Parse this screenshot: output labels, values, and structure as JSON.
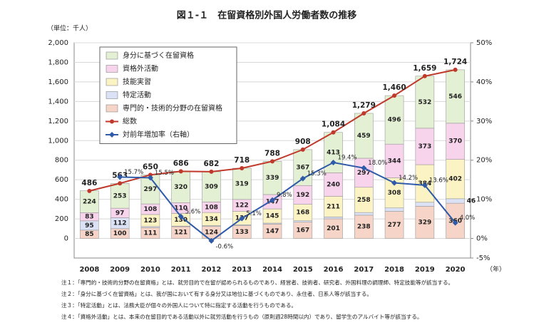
{
  "chart_data": {
    "type": "bar",
    "stacked": true,
    "title": "図１-１　在留資格別外国人労働者数の推移",
    "unit_label": "（単位：千人）",
    "x_unit_label": "（年）",
    "categories": [
      "2008",
      "2009",
      "2010",
      "2011",
      "2012",
      "2013",
      "2014",
      "2015",
      "2016",
      "2017",
      "2018",
      "2019",
      "2020"
    ],
    "series": [
      {
        "name": "専門的・技術的分野の在留資格",
        "color": "#f6d5c8",
        "values": [
          85,
          100,
          111,
          121,
          124,
          133,
          147,
          167,
          201,
          238,
          277,
          329,
          360
        ],
        "value_labels": [
          "85",
          "100",
          "111",
          "121",
          "124",
          "133",
          "147",
          "167",
          "201",
          "238",
          "277",
          "329",
          "360"
        ]
      },
      {
        "name": "特定活動",
        "color": "#dbe2f6",
        "values": [
          95,
          112,
          11,
          5,
          7,
          7,
          10,
          14,
          19,
          27,
          35,
          41,
          46
        ],
        "value_labels": [
          "95",
          "112",
          null,
          null,
          null,
          null,
          null,
          null,
          null,
          null,
          null,
          null,
          "46"
        ]
      },
      {
        "name": "技能実習",
        "color": "#fbf3c4",
        "values": [
          0,
          0,
          123,
          130,
          134,
          137,
          145,
          168,
          211,
          258,
          308,
          384,
          402
        ],
        "value_labels": [
          null,
          null,
          "123",
          "130",
          "134",
          "137",
          "145",
          "168",
          "211",
          "258",
          "308",
          "384",
          "402"
        ]
      },
      {
        "name": "資格外活動",
        "color": "#f7d3ec",
        "values": [
          83,
          97,
          108,
          110,
          108,
          122,
          147,
          192,
          240,
          297,
          344,
          373,
          370
        ],
        "value_labels": [
          "83",
          "97",
          "108",
          "110",
          "108",
          "122",
          "147",
          "192",
          "240",
          "297",
          "344",
          "373",
          "370"
        ]
      },
      {
        "name": "身分に基づく在留資格",
        "color": "#e3f0d3",
        "values": [
          224,
          253,
          297,
          320,
          309,
          319,
          339,
          367,
          413,
          459,
          496,
          532,
          546
        ],
        "value_labels": [
          "224",
          "253",
          "297",
          "320",
          "309",
          "319",
          "339",
          "367",
          "413",
          "459",
          "496",
          "532",
          "546"
        ]
      },
      {
        "name": "総数",
        "type": "line",
        "color": "#c0392b",
        "values": [
          486,
          563,
          650,
          686,
          682,
          718,
          788,
          908,
          1084,
          1279,
          1460,
          1659,
          1724
        ],
        "value_labels": [
          "486",
          "563",
          "650",
          "686",
          "682",
          "718",
          "788",
          "908",
          "1,084",
          "1,279",
          "1,460",
          "1,659",
          "1,724"
        ]
      },
      {
        "name": "対前年増加率（右軸）",
        "type": "line",
        "axis": "y2",
        "color": "#2e5aa8",
        "values": [
          null,
          15.7,
          15.5,
          5.6,
          -0.6,
          5.1,
          9.8,
          15.3,
          19.4,
          18.0,
          14.2,
          13.6,
          4.0
        ],
        "value_labels": [
          null,
          "15.7%",
          "15.5%",
          "5.6%",
          "-0.6%",
          "5.1%",
          "9.8%",
          "15.3%",
          "19.4%",
          "18.0%",
          "14.2%",
          "13.6%",
          "4.0%"
        ]
      }
    ],
    "ylim": [
      -200,
      2000
    ],
    "yticks": [
      0,
      200,
      400,
      600,
      800,
      {
        "value": 1000,
        "label": "1,000"
      },
      {
        "value": 1200,
        "label": "1,200"
      },
      {
        "value": 1400,
        "label": "1,400"
      },
      {
        "value": 1600,
        "label": "1,600"
      },
      {
        "value": 1800,
        "label": "1,800"
      },
      {
        "value": 2000,
        "label": "2,000"
      }
    ],
    "y2lim": [
      -5,
      50
    ],
    "y2ticks": [
      {
        "value": -5,
        "label": "-5%"
      },
      {
        "value": 0,
        "label": "0%"
      },
      {
        "value": 10,
        "label": "10%"
      },
      {
        "value": 20,
        "label": "20%"
      },
      {
        "value": 30,
        "label": "30%"
      },
      {
        "value": 40,
        "label": "40%"
      },
      {
        "value": 50,
        "label": "50%"
      }
    ],
    "grid": true,
    "legend": "upper left",
    "notes": [
      "注１：「専門的・技術的分野の在留資格」とは、就労目的で在留が認められるものであり、経営者、技術者、研究者、外国料理の調理師、特定技能等が該当する。",
      "注２：「身分に基づく在留資格」とは、我が国において有する身分又は地位に基づくものであり、永住者、日系人等が該当する。",
      "注３：「特定活動」とは、法務大臣が個々の外国人について特に指定する活動を行うものである。",
      "注４：「資格外活動」とは、本来の在留目的である活動以外に就労活動を行うもの（原則週28時間以内）であり、留学生のアルバイト等が該当する。"
    ]
  }
}
